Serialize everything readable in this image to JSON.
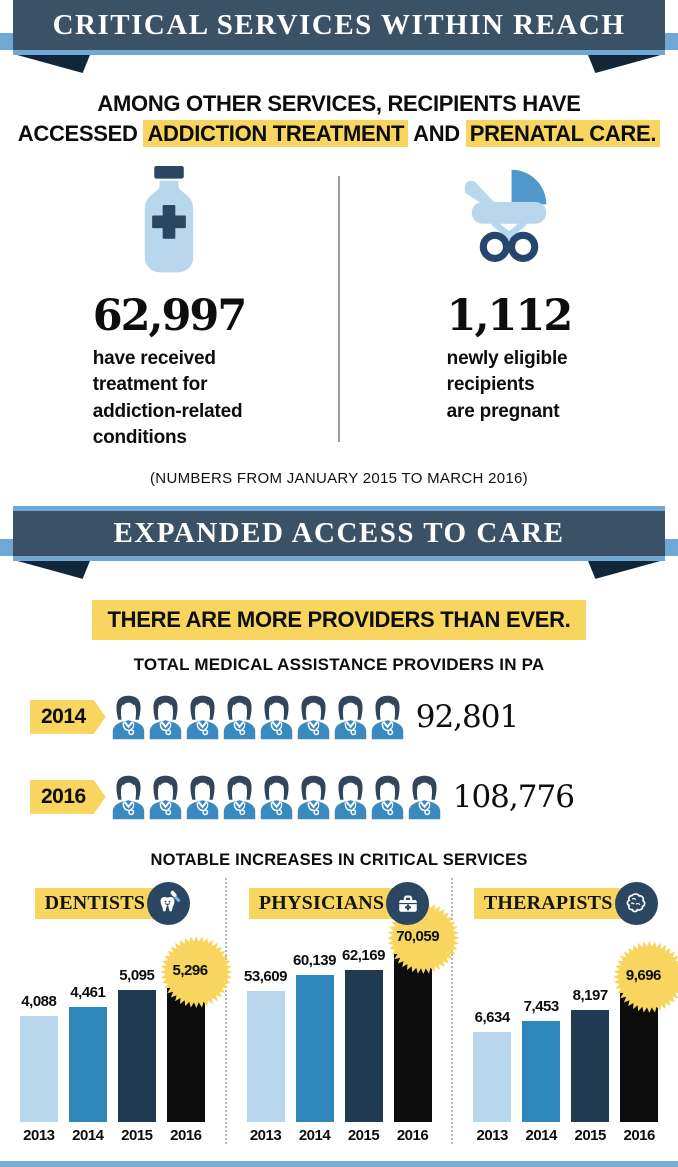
{
  "colors": {
    "accent_yellow": "#f8d55e",
    "ribbon_navy": "#3b5166",
    "ribbon_light_blue": "#6fa8d6",
    "fold_navy": "#12263a",
    "divider_gray": "#9a9a9a",
    "bar_2013": "#b9d7ec",
    "bar_2014": "#2f86ba",
    "bar_2015": "#203a52",
    "bar_2016": "#0c0c0c"
  },
  "banner1": {
    "title": "CRITICAL SERVICES WITHIN REACH"
  },
  "headline": {
    "line1": "AMONG OTHER SERVICES, RECIPIENTS HAVE",
    "accessed": "ACCESSED ",
    "h1": "ADDICTION TREATMENT",
    "and": " AND ",
    "h2": "PRENATAL CARE."
  },
  "stats": {
    "left": {
      "icon": "medicine-bottle-icon",
      "value": "62,997",
      "caption": "have received\ntreatment for\naddiction-related\nconditions"
    },
    "right": {
      "icon": "stroller-icon",
      "value": "1,112",
      "caption": "newly eligible\nrecipients\nare pregnant"
    },
    "note": "(NUMBERS FROM JANUARY 2015 TO MARCH 2016)"
  },
  "banner2": {
    "title": "EXPANDED ACCESS TO CARE"
  },
  "providers": {
    "tagline": "THERE ARE MORE PROVIDERS THAN EVER.",
    "heading": "TOTAL MEDICAL ASSISTANCE PROVIDERS IN PA",
    "icon": "doctor-icon",
    "rows": [
      {
        "year": "2014",
        "count": "92,801",
        "icons": 8
      },
      {
        "year": "2016",
        "count": "108,776",
        "icons": 9
      }
    ]
  },
  "increases_heading": "NOTABLE INCREASES IN CRITICAL SERVICES",
  "chart_data": [
    {
      "type": "bar",
      "title": "DENTISTS",
      "icon": "tooth-icon",
      "categories": [
        "2013",
        "2014",
        "2015",
        "2016"
      ],
      "values": [
        4088,
        4461,
        5095,
        5296
      ],
      "labels": [
        "4,088",
        "4,461",
        "5,095",
        "5,296"
      ],
      "highlight_index": 3,
      "bar_colors": [
        "#b9d7ec",
        "#2f86ba",
        "#203a52",
        "#0c0c0c"
      ],
      "ylim": [
        0,
        5296
      ],
      "grid": false,
      "legend": "none"
    },
    {
      "type": "bar",
      "title": "PHYSICIANS",
      "icon": "medical-bag-icon",
      "categories": [
        "2013",
        "2014",
        "2015",
        "2016"
      ],
      "values": [
        53609,
        60139,
        62169,
        70059
      ],
      "labels": [
        "53,609",
        "60,139",
        "62,169",
        "70,059"
      ],
      "highlight_index": 3,
      "bar_colors": [
        "#b9d7ec",
        "#2f86ba",
        "#203a52",
        "#0c0c0c"
      ],
      "ylim": [
        0,
        70059
      ],
      "grid": false,
      "legend": "none"
    },
    {
      "type": "bar",
      "title": "THERAPISTS",
      "icon": "brain-icon",
      "categories": [
        "2013",
        "2014",
        "2015",
        "2016"
      ],
      "values": [
        6634,
        7453,
        8197,
        9696
      ],
      "labels": [
        "6,634",
        "7,453",
        "8,197",
        "9,696"
      ],
      "highlight_index": 3,
      "bar_colors": [
        "#b9d7ec",
        "#2f86ba",
        "#203a52",
        "#0c0c0c"
      ],
      "ylim": [
        0,
        9696
      ],
      "grid": false,
      "legend": "none"
    }
  ]
}
